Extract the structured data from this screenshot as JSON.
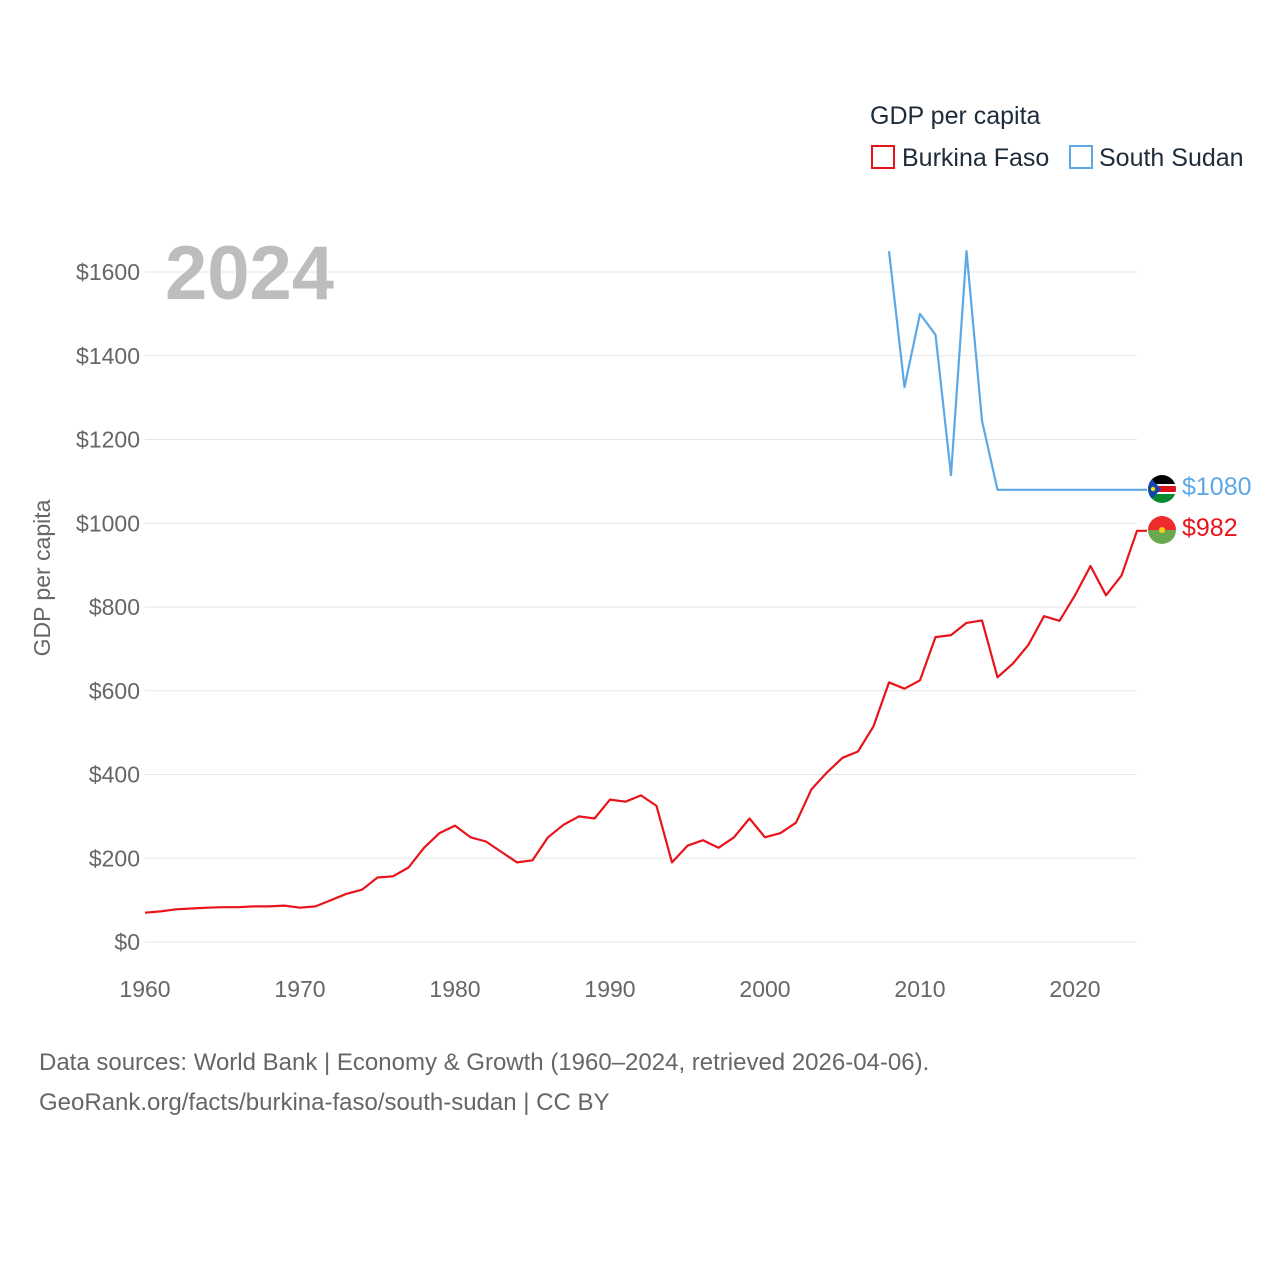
{
  "chart_data": {
    "type": "line",
    "title": "GDP per capita",
    "ylabel": "GDP per capita",
    "xlabel": "",
    "year_overlay": "2024",
    "xlim": [
      1960,
      2024
    ],
    "ylim": [
      0,
      1700
    ],
    "x_ticks": [
      1960,
      1970,
      1980,
      1990,
      2000,
      2010,
      2020
    ],
    "y_ticks": [
      0,
      200,
      400,
      600,
      800,
      1000,
      1200,
      1400,
      1600
    ],
    "y_tick_labels": [
      "$0",
      "$200",
      "$400",
      "$600",
      "$800",
      "$1000",
      "$1200",
      "$1400",
      "$1600"
    ],
    "x_tick_labels": [
      "1960",
      "1970",
      "1980",
      "1990",
      "2000",
      "2010",
      "2020"
    ],
    "grid": true,
    "legend_position": "top-right",
    "series": [
      {
        "name": "Burkina Faso",
        "color": "#e8141b",
        "end_label": "$982",
        "x": [
          1960,
          1961,
          1962,
          1963,
          1964,
          1965,
          1966,
          1967,
          1968,
          1969,
          1970,
          1971,
          1972,
          1973,
          1974,
          1975,
          1976,
          1977,
          1978,
          1979,
          1980,
          1981,
          1982,
          1983,
          1984,
          1985,
          1986,
          1987,
          1988,
          1989,
          1990,
          1991,
          1992,
          1993,
          1994,
          1995,
          1996,
          1997,
          1998,
          1999,
          2000,
          2001,
          2002,
          2003,
          2004,
          2005,
          2006,
          2007,
          2008,
          2009,
          2010,
          2011,
          2012,
          2013,
          2014,
          2015,
          2016,
          2017,
          2018,
          2019,
          2020,
          2021,
          2022,
          2023,
          2024
        ],
        "values": [
          70,
          73,
          78,
          80,
          82,
          83,
          83,
          85,
          85,
          87,
          82,
          85,
          100,
          115,
          125,
          154,
          157,
          178,
          225,
          260,
          278,
          250,
          240,
          215,
          190,
          195,
          250,
          280,
          300,
          295,
          340,
          335,
          350,
          325,
          190,
          230,
          243,
          225,
          250,
          295,
          250,
          260,
          285,
          365,
          405,
          440,
          455,
          515,
          620,
          605,
          625,
          728,
          733,
          762,
          768,
          632,
          665,
          710,
          778,
          767,
          828,
          898,
          828,
          875,
          982
        ]
      },
      {
        "name": "South Sudan",
        "color": "#5ca8e6",
        "end_label": "$1080",
        "x": [
          2008,
          2009,
          2010,
          2011,
          2012,
          2013,
          2014,
          2015,
          2016,
          2017,
          2018,
          2019,
          2020,
          2021,
          2022,
          2023,
          2024
        ],
        "values": [
          1650,
          1325,
          1500,
          1450,
          1115,
          1650,
          1245,
          1080,
          1080,
          1080,
          1080,
          1080,
          1080,
          1080,
          1080,
          1080,
          1080
        ]
      }
    ]
  },
  "source": {
    "line1": "Data sources: World Bank | Economy & Growth (1960–2024, retrieved 2026-04-06).",
    "line2": "GeoRank.org/facts/burkina-faso/south-sudan | CC BY"
  },
  "flags": {
    "burkina_faso": "burkina-faso-flag-icon",
    "south_sudan": "south-sudan-flag-icon"
  }
}
